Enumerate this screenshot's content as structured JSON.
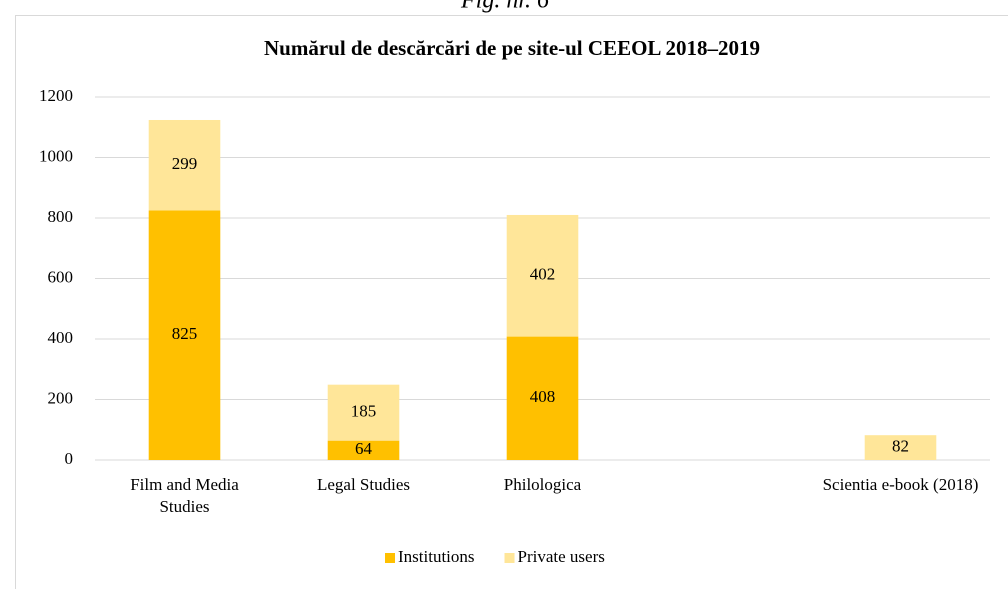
{
  "caption": "Fig. nr. 6",
  "chart_data": {
    "type": "stacked_bar",
    "title": "Numărul de descărcări de pe site-ul CEEOL 2018–2019",
    "categories": [
      "Film and Media Studies",
      "Legal Studies",
      "Philologica",
      null,
      "Scientia e-book (2018)"
    ],
    "series": [
      {
        "name": "Institutions",
        "color": "#ffc000",
        "values": [
          825,
          64,
          408,
          null,
          null
        ]
      },
      {
        "name": "Private users",
        "color": "#ffe699",
        "values": [
          299,
          185,
          402,
          null,
          82
        ]
      }
    ],
    "ylim": [
      0,
      1200
    ],
    "yticks": [
      0,
      200,
      400,
      600,
      800,
      1000,
      1200
    ],
    "grid": true,
    "legend": "bottom"
  }
}
